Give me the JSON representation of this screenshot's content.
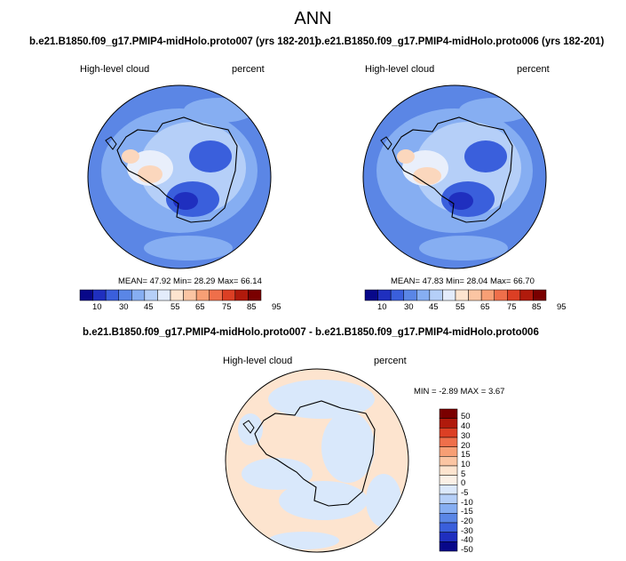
{
  "page": {
    "title": "ANN"
  },
  "panels": [
    {
      "title": "b.e21.B1850.f09_g17.PMIP4-midHolo.proto007 (yrs 182-201)",
      "left_label": "High-level cloud",
      "right_label": "percent",
      "stats": "MEAN=  47.92  Min=  28.29  Max=  66.14",
      "colorbar_labels": [
        "10",
        "30",
        "45",
        "55",
        "65",
        "75",
        "85",
        "95"
      ]
    },
    {
      "title": "b.e21.B1850.f09_g17.PMIP4-midHolo.proto006 (yrs 182-201)",
      "left_label": "High-level cloud",
      "right_label": "percent",
      "stats": "MEAN=  47.83  Min=  28.04  Max=  66.70",
      "colorbar_labels": [
        "10",
        "30",
        "45",
        "55",
        "65",
        "75",
        "85",
        "95"
      ]
    }
  ],
  "diff": {
    "title": "b.e21.B1850.f09_g17.PMIP4-midHolo.proto007 - b.e21.B1850.f09_g17.PMIP4-midHolo.proto006",
    "left_label": "High-level cloud",
    "right_label": "percent",
    "stats": "MIN =  -2.89 MAX =   3.67",
    "colorbar_labels": [
      "50",
      "40",
      "30",
      "20",
      "15",
      "10",
      "5",
      "0",
      "-5",
      "-10",
      "-15",
      "-20",
      "-30",
      "-40",
      "-50"
    ]
  },
  "chart_data": [
    {
      "type": "heatmap",
      "title": "b.e21.B1850.f09_g17.PMIP4-midHolo.proto007 (yrs 182-201)",
      "variable": "High-level cloud",
      "units": "percent",
      "projection": "south-polar stereographic",
      "mean": 47.92,
      "min": 28.29,
      "max": 66.14,
      "colorbar_levels": [
        10,
        30,
        45,
        55,
        65,
        75,
        85,
        95
      ]
    },
    {
      "type": "heatmap",
      "title": "b.e21.B1850.f09_g17.PMIP4-midHolo.proto006 (yrs 182-201)",
      "variable": "High-level cloud",
      "units": "percent",
      "projection": "south-polar stereographic",
      "mean": 47.83,
      "min": 28.04,
      "max": 66.7,
      "colorbar_levels": [
        10,
        30,
        45,
        55,
        65,
        75,
        85,
        95
      ]
    },
    {
      "type": "heatmap",
      "title": "b.e21.B1850.f09_g17.PMIP4-midHolo.proto007 - b.e21.B1850.f09_g17.PMIP4-midHolo.proto006",
      "variable": "High-level cloud",
      "units": "percent",
      "projection": "south-polar stereographic",
      "min": -2.89,
      "max": 3.67,
      "colorbar_levels": [
        50,
        40,
        30,
        20,
        15,
        10,
        5,
        0,
        -5,
        -10,
        -15,
        -20,
        -30,
        -40,
        -50
      ]
    }
  ],
  "colors": {
    "abs_colorbar": [
      "#08088a",
      "#1f2fbf",
      "#3a5fdc",
      "#5a86e6",
      "#86aef2",
      "#b5cff8",
      "#e3ecfb",
      "#fde4cf",
      "#fbc5a3",
      "#f79f75",
      "#ef6f4a",
      "#dc3f24",
      "#b01a0c",
      "#7a0000"
    ],
    "diff_colorbar": [
      "#7a0000",
      "#b01a0c",
      "#dc3f24",
      "#ef6f4a",
      "#f79f75",
      "#fbc5a3",
      "#fde4cf",
      "#fbf0e6",
      "#dbe8fb",
      "#b5cff8",
      "#86aef2",
      "#5a86e6",
      "#3a5fdc",
      "#1f2fbf",
      "#08088a"
    ],
    "map_ocean": "#5b86e5",
    "map_mid": "#86aef2",
    "map_light": "#b5cff8",
    "map_warm": "#fbd7bd",
    "diff_pos": "#fde4cf",
    "diff_neg": "#d9e8fb"
  }
}
